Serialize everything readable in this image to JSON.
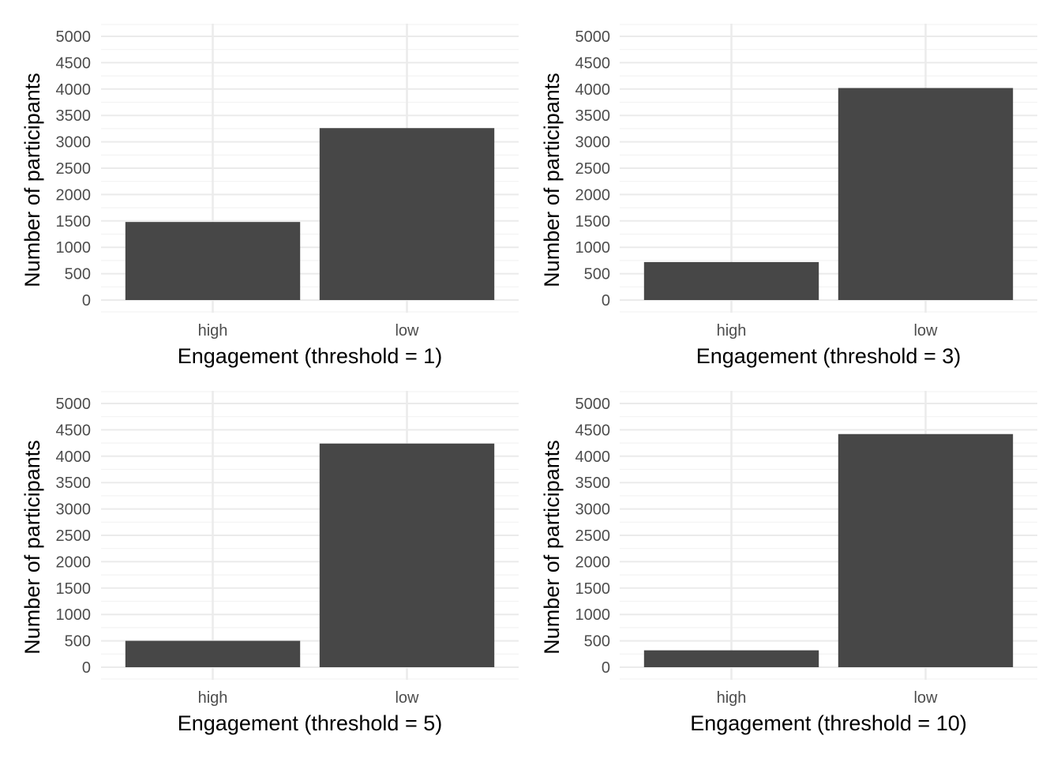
{
  "colors": {
    "bar": "#474747",
    "grid_major": "#ebebeb",
    "grid_minor": "#f3f3f3",
    "background": "#ffffff"
  },
  "chart_data": [
    {
      "type": "bar",
      "categories": [
        "high",
        "low"
      ],
      "values": [
        1480,
        3260
      ],
      "xlabel": "Engagement (threshold = 1)",
      "ylabel": "Number of participants",
      "ylim": [
        0,
        5000
      ],
      "yticks": [
        "0",
        "500",
        "1000",
        "1500",
        "2000",
        "2500",
        "3000",
        "3500",
        "4000",
        "4500",
        "5000"
      ],
      "grid": true
    },
    {
      "type": "bar",
      "categories": [
        "high",
        "low"
      ],
      "values": [
        720,
        4020
      ],
      "xlabel": "Engagement (threshold = 3)",
      "ylabel": "Number of participants",
      "ylim": [
        0,
        5000
      ],
      "yticks": [
        "0",
        "500",
        "1000",
        "1500",
        "2000",
        "2500",
        "3000",
        "3500",
        "4000",
        "4500",
        "5000"
      ],
      "grid": true
    },
    {
      "type": "bar",
      "categories": [
        "high",
        "low"
      ],
      "values": [
        500,
        4240
      ],
      "xlabel": "Engagement (threshold = 5)",
      "ylabel": "Number of participants",
      "ylim": [
        0,
        5000
      ],
      "yticks": [
        "0",
        "500",
        "1000",
        "1500",
        "2000",
        "2500",
        "3000",
        "3500",
        "4000",
        "4500",
        "5000"
      ],
      "grid": true
    },
    {
      "type": "bar",
      "categories": [
        "high",
        "low"
      ],
      "values": [
        320,
        4420
      ],
      "xlabel": "Engagement (threshold = 10)",
      "ylabel": "Number of participants",
      "ylim": [
        0,
        5000
      ],
      "yticks": [
        "0",
        "500",
        "1000",
        "1500",
        "2000",
        "2500",
        "3000",
        "3500",
        "4000",
        "4500",
        "5000"
      ],
      "grid": true
    }
  ]
}
